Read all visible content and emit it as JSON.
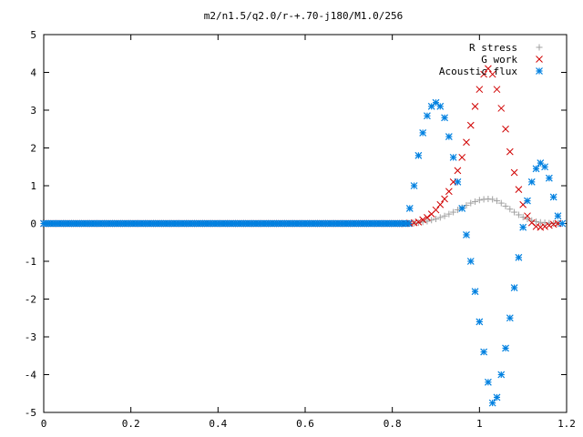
{
  "chart_data": {
    "type": "scatter",
    "title": "m2/n1.5/q2.0/r-+.70-j180/M1.0/256",
    "xlabel": "",
    "ylabel": "",
    "xlim": [
      0,
      1.2
    ],
    "ylim": [
      -5,
      5
    ],
    "x_ticks": [
      "0",
      "0.2",
      "0.4",
      "0.6",
      "0.8",
      "1",
      "1.2"
    ],
    "y_ticks": [
      "5",
      "4",
      "3",
      "2",
      "1",
      "0",
      "-1",
      "-2",
      "-3",
      "-4",
      "-5"
    ],
    "grid": false,
    "legend_position": "top-right",
    "series": [
      {
        "name": "R stress",
        "marker": "plus",
        "color": "#a0a0a0",
        "points": [
          [
            0.84,
            0.0
          ],
          [
            0.85,
            0.01
          ],
          [
            0.86,
            0.02
          ],
          [
            0.87,
            0.04
          ],
          [
            0.88,
            0.06
          ],
          [
            0.89,
            0.09
          ],
          [
            0.9,
            0.12
          ],
          [
            0.91,
            0.16
          ],
          [
            0.92,
            0.2
          ],
          [
            0.93,
            0.25
          ],
          [
            0.94,
            0.3
          ],
          [
            0.95,
            0.36
          ],
          [
            0.96,
            0.42
          ],
          [
            0.97,
            0.48
          ],
          [
            0.98,
            0.54
          ],
          [
            0.99,
            0.58
          ],
          [
            1.0,
            0.62
          ],
          [
            1.01,
            0.64
          ],
          [
            1.02,
            0.65
          ],
          [
            1.03,
            0.64
          ],
          [
            1.04,
            0.6
          ],
          [
            1.05,
            0.54
          ],
          [
            1.06,
            0.46
          ],
          [
            1.07,
            0.38
          ],
          [
            1.08,
            0.3
          ],
          [
            1.09,
            0.23
          ],
          [
            1.1,
            0.17
          ],
          [
            1.11,
            0.12
          ],
          [
            1.12,
            0.08
          ],
          [
            1.13,
            0.05
          ],
          [
            1.14,
            0.03
          ],
          [
            1.15,
            0.02
          ],
          [
            1.16,
            0.01
          ],
          [
            1.17,
            0.0
          ],
          [
            1.18,
            0.0
          ]
        ]
      },
      {
        "name": "G work",
        "marker": "cross",
        "color": "#d00000",
        "points": [
          [
            0.83,
            0.0
          ],
          [
            0.84,
            0.01
          ],
          [
            0.85,
            0.02
          ],
          [
            0.86,
            0.04
          ],
          [
            0.87,
            0.1
          ],
          [
            0.88,
            0.16
          ],
          [
            0.89,
            0.25
          ],
          [
            0.9,
            0.36
          ],
          [
            0.91,
            0.5
          ],
          [
            0.92,
            0.65
          ],
          [
            0.93,
            0.85
          ],
          [
            0.94,
            1.1
          ],
          [
            0.95,
            1.4
          ],
          [
            0.96,
            1.75
          ],
          [
            0.97,
            2.15
          ],
          [
            0.98,
            2.6
          ],
          [
            0.99,
            3.1
          ],
          [
            1.0,
            3.55
          ],
          [
            1.01,
            3.95
          ],
          [
            1.02,
            4.1
          ],
          [
            1.03,
            3.95
          ],
          [
            1.04,
            3.55
          ],
          [
            1.05,
            3.05
          ],
          [
            1.06,
            2.5
          ],
          [
            1.07,
            1.9
          ],
          [
            1.08,
            1.35
          ],
          [
            1.09,
            0.9
          ],
          [
            1.1,
            0.5
          ],
          [
            1.11,
            0.2
          ],
          [
            1.12,
            0.02
          ],
          [
            1.13,
            -0.08
          ],
          [
            1.14,
            -0.1
          ],
          [
            1.15,
            -0.08
          ],
          [
            1.16,
            -0.05
          ],
          [
            1.17,
            -0.02
          ],
          [
            1.18,
            0.0
          ]
        ]
      },
      {
        "name": "Acoustic flux",
        "marker": "star",
        "color": "#0080e0",
        "points": [
          [
            0.84,
            0.4
          ],
          [
            0.85,
            1.0
          ],
          [
            0.86,
            1.8
          ],
          [
            0.87,
            2.4
          ],
          [
            0.88,
            2.85
          ],
          [
            0.89,
            3.1
          ],
          [
            0.9,
            3.2
          ],
          [
            0.91,
            3.1
          ],
          [
            0.92,
            2.8
          ],
          [
            0.93,
            2.3
          ],
          [
            0.94,
            1.75
          ],
          [
            0.95,
            1.1
          ],
          [
            0.96,
            0.4
          ],
          [
            0.97,
            -0.3
          ],
          [
            0.98,
            -1.0
          ],
          [
            0.99,
            -1.8
          ],
          [
            1.0,
            -2.6
          ],
          [
            1.01,
            -3.4
          ],
          [
            1.02,
            -4.2
          ],
          [
            1.03,
            -4.75
          ],
          [
            1.04,
            -4.6
          ],
          [
            1.05,
            -4.0
          ],
          [
            1.06,
            -3.3
          ],
          [
            1.07,
            -2.5
          ],
          [
            1.08,
            -1.7
          ],
          [
            1.09,
            -0.9
          ],
          [
            1.1,
            -0.1
          ],
          [
            1.11,
            0.6
          ],
          [
            1.12,
            1.1
          ],
          [
            1.13,
            1.45
          ],
          [
            1.14,
            1.6
          ],
          [
            1.15,
            1.5
          ],
          [
            1.16,
            1.2
          ],
          [
            1.17,
            0.7
          ],
          [
            1.18,
            0.2
          ],
          [
            1.19,
            0.0
          ]
        ]
      }
    ]
  }
}
